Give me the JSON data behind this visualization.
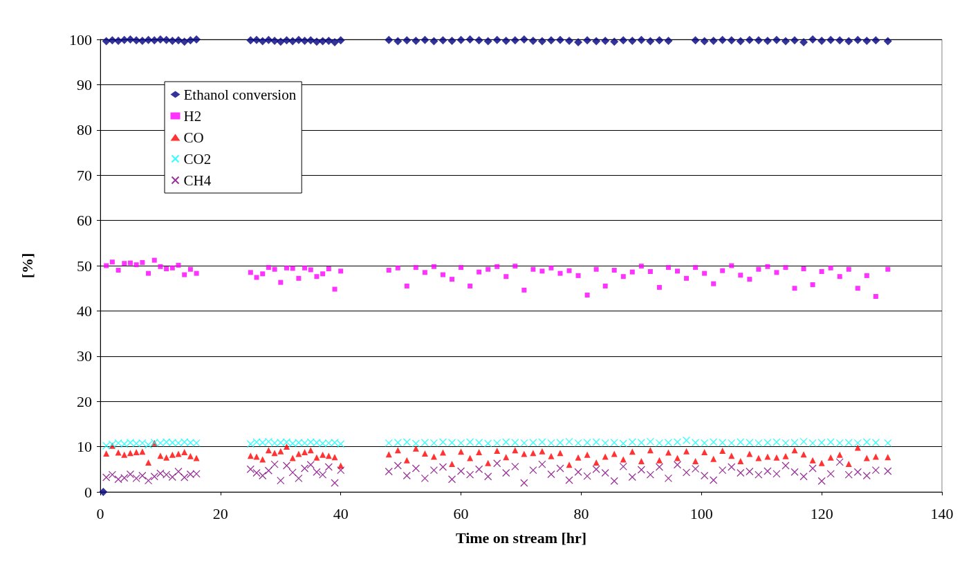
{
  "chart_data": {
    "type": "scatter",
    "xlabel": "Time on stream [hr]",
    "ylabel": "[%]",
    "xlim": [
      0,
      140
    ],
    "xticks": [
      0,
      20,
      40,
      60,
      80,
      100,
      120,
      140
    ],
    "ylim": [
      0,
      100
    ],
    "yticks": [
      0,
      10,
      20,
      30,
      40,
      50,
      60,
      70,
      80,
      90,
      100
    ],
    "grid": "y",
    "legend": "top left",
    "x": [
      1,
      2,
      3,
      4,
      5,
      6,
      7,
      8,
      9,
      10,
      11,
      12,
      13,
      14,
      15,
      16,
      25,
      26,
      27,
      28,
      29,
      30,
      31,
      32,
      33,
      34,
      35,
      36,
      37,
      38,
      39,
      40,
      48,
      49.5,
      51,
      52.5,
      54,
      55.5,
      57,
      58.5,
      60,
      61.5,
      63,
      64.5,
      66,
      67.5,
      69,
      70.5,
      72,
      73.5,
      75,
      76.5,
      78,
      79.5,
      81,
      82.5,
      84,
      85.5,
      87,
      88.5,
      90,
      91.5,
      93,
      94.5,
      96,
      97.5,
      99,
      100.5,
      102,
      103.5,
      105,
      106.5,
      108,
      109.5,
      111,
      112.5,
      114,
      115.5,
      117,
      118.5,
      120,
      121.5,
      123,
      124.5,
      126,
      127.5,
      129,
      131
    ],
    "series": [
      {
        "name": "Ethanol conversion",
        "color": "#000080",
        "marker": "diamond",
        "x": [
          0.5,
          1,
          2,
          3,
          4,
          5,
          6,
          7,
          8,
          9,
          10,
          11,
          12,
          13,
          14,
          15,
          16,
          25,
          26,
          27,
          28,
          29,
          30,
          31,
          32,
          33,
          34,
          35,
          36,
          37,
          38,
          39,
          40,
          48,
          49.5,
          51,
          52.5,
          54,
          55.5,
          57,
          58.5,
          60,
          61.5,
          63,
          64.5,
          66,
          67.5,
          69,
          70.5,
          72,
          73.5,
          75,
          76.5,
          78,
          79.5,
          81,
          82.5,
          84,
          85.5,
          87,
          88.5,
          90,
          91.5,
          93,
          94.5,
          96,
          97.5,
          99,
          100.5,
          102,
          103.5,
          105,
          106.5,
          108,
          109.5,
          111,
          112.5,
          114,
          115.5,
          117,
          118.5,
          120,
          121.5,
          123,
          124.5,
          126,
          127.5,
          129,
          131
        ],
        "values": [
          0,
          99.6,
          99.8,
          99.7,
          99.9,
          100,
          99.8,
          99.7,
          99.9,
          99.8,
          100,
          99.9,
          99.7,
          99.8,
          99.5,
          99.8,
          100,
          99.8,
          99.9,
          99.6,
          99.9,
          99.7,
          99.5,
          99.8,
          99.6,
          99.9,
          99.7,
          99.8,
          99.5,
          99.6,
          99.7,
          99.4,
          99.8,
          99.9,
          99.6,
          99.8,
          99.7,
          99.9,
          99.6,
          99.8,
          99.7,
          99.9,
          100,
          99.8,
          99.6,
          99.9,
          99.7,
          99.8,
          100,
          99.7,
          99.6,
          99.8,
          99.9,
          99.7,
          99.4,
          99.8,
          99.6,
          99.7,
          99.5,
          99.8,
          99.7,
          99.9,
          99.6,
          99.8,
          99.7,
          null,
          null,
          99.8,
          99.6,
          99.7,
          99.9,
          99.8,
          99.6,
          99.9,
          99.8,
          99.7,
          99.9,
          99.6,
          99.8,
          99.4,
          100,
          99.7,
          99.9,
          99.8,
          99.6,
          99.9,
          99.7,
          99.8,
          99.6
        ]
      },
      {
        "name": "H2",
        "color": "#ff00ff",
        "marker": "square",
        "values": [
          50.0,
          50.8,
          49.0,
          50.5,
          50.6,
          50.2,
          50.7,
          48.3,
          51.2,
          49.8,
          49.3,
          49.5,
          50.1,
          48.0,
          49.2,
          48.3,
          48.5,
          47.4,
          48.2,
          49.6,
          49.2,
          46.3,
          49.5,
          49.4,
          47.2,
          49.5,
          49.1,
          47.6,
          48.2,
          49.3,
          44.8,
          48.8,
          49.0,
          49.5,
          45.5,
          49.6,
          48.5,
          49.8,
          48.0,
          47.0,
          49.6,
          45.5,
          48.6,
          49.2,
          49.8,
          47.6,
          49.9,
          44.6,
          49.2,
          48.8,
          49.5,
          48.3,
          48.9,
          47.8,
          43.5,
          49.2,
          45.5,
          49.0,
          47.6,
          48.6,
          49.9,
          48.7,
          45.2,
          49.6,
          48.8,
          47.2,
          49.6,
          48.3,
          46.0,
          48.9,
          50.0,
          47.9,
          47.0,
          49.2,
          49.8,
          48.5,
          49.6,
          45.0,
          49.3,
          45.8,
          48.7,
          49.5,
          47.6,
          49.2,
          45.0,
          47.8,
          43.2,
          49.2
        ]
      },
      {
        "name": "CO",
        "color": "#ff0000",
        "marker": "triangle",
        "values": [
          8.5,
          10.2,
          8.7,
          8.2,
          8.6,
          8.8,
          8.9,
          6.5,
          10.8,
          8.0,
          7.6,
          8.2,
          8.4,
          8.8,
          7.9,
          7.5,
          8.0,
          7.8,
          7.2,
          9.2,
          8.6,
          9.0,
          10.0,
          7.5,
          8.4,
          8.8,
          9.2,
          7.6,
          8.2,
          8.0,
          7.7,
          5.8,
          8.3,
          9.2,
          7.0,
          9.6,
          8.5,
          7.8,
          8.7,
          6.2,
          8.9,
          7.5,
          8.8,
          6.4,
          9.1,
          7.7,
          9.2,
          8.4,
          8.6,
          9.0,
          7.9,
          8.6,
          6.0,
          7.6,
          8.2,
          6.5,
          7.8,
          8.4,
          7.2,
          8.9,
          6.8,
          9.2,
          7.0,
          8.7,
          7.5,
          9.0,
          6.8,
          8.8,
          7.3,
          9.1,
          8.0,
          6.8,
          8.4,
          7.5,
          7.8,
          7.6,
          7.9,
          9.2,
          8.3,
          7.0,
          6.4,
          7.6,
          8.2,
          6.2,
          9.8,
          7.5,
          7.8,
          7.7
        ]
      },
      {
        "name": "CO2",
        "color": "#00ffff",
        "marker": "cross",
        "values": [
          10.2,
          10.5,
          10.8,
          10.6,
          10.9,
          10.7,
          10.8,
          10.4,
          10.9,
          10.8,
          11.0,
          10.9,
          10.8,
          11.0,
          10.9,
          10.8,
          10.6,
          11.0,
          10.9,
          11.1,
          10.8,
          10.9,
          11.0,
          10.7,
          10.9,
          10.8,
          11.0,
          10.9,
          10.7,
          10.8,
          10.9,
          10.6,
          10.8,
          10.9,
          11.0,
          10.7,
          10.9,
          10.8,
          11.0,
          10.9,
          10.8,
          11.0,
          10.9,
          10.7,
          10.8,
          11.0,
          10.9,
          10.8,
          10.9,
          11.0,
          10.8,
          10.9,
          11.1,
          10.8,
          10.9,
          11.0,
          10.8,
          10.9,
          10.7,
          11.0,
          10.9,
          11.1,
          10.8,
          10.9,
          11.0,
          11.4,
          10.9,
          10.8,
          11.0,
          10.9,
          10.8,
          11.0,
          10.9,
          10.8,
          10.9,
          11.0,
          10.8,
          10.9,
          11.1,
          10.8,
          10.9,
          11.0,
          10.8,
          10.9,
          10.8,
          11.0,
          10.9,
          10.8
        ]
      },
      {
        "name": "CH4",
        "color": "#800080",
        "marker": "cross",
        "values": [
          3.2,
          3.8,
          2.8,
          3.1,
          3.9,
          3.0,
          3.6,
          2.5,
          3.4,
          4.1,
          3.8,
          3.3,
          4.5,
          3.2,
          3.9,
          4.0,
          5.0,
          4.2,
          3.6,
          4.7,
          6.1,
          2.5,
          5.8,
          4.3,
          3.0,
          5.2,
          6.0,
          4.4,
          3.8,
          5.5,
          2.0,
          4.8,
          4.5,
          5.8,
          3.6,
          5.2,
          3.0,
          4.8,
          5.5,
          2.8,
          4.6,
          3.8,
          5.0,
          3.4,
          6.3,
          4.2,
          5.6,
          2.0,
          4.8,
          6.1,
          3.9,
          5.2,
          2.6,
          4.4,
          3.5,
          5.0,
          4.2,
          2.4,
          5.6,
          3.3,
          4.9,
          3.8,
          5.5,
          3.0,
          6.0,
          4.3,
          5.1,
          3.6,
          2.6,
          4.8,
          5.5,
          4.2,
          4.5,
          3.8,
          4.6,
          4.0,
          5.8,
          4.4,
          3.4,
          5.2,
          2.4,
          4.0,
          6.6,
          3.8,
          4.4,
          3.6,
          4.8,
          4.6
        ]
      }
    ]
  }
}
